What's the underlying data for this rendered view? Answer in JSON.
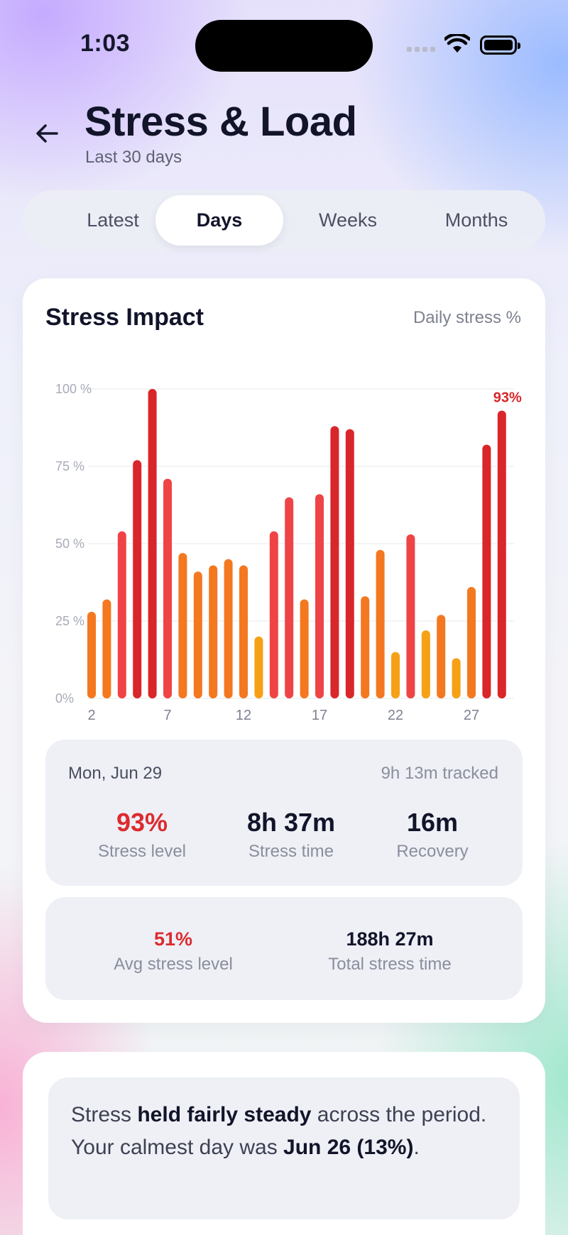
{
  "status_bar": {
    "time": "1:03"
  },
  "header": {
    "title": "Stress & Load",
    "subtitle": "Last 30 days"
  },
  "tabs": [
    {
      "label": "Latest",
      "active": false
    },
    {
      "label": "Days",
      "active": true
    },
    {
      "label": "Weeks",
      "active": false
    },
    {
      "label": "Months",
      "active": false
    }
  ],
  "card": {
    "title": "Stress Impact",
    "subtitle": "Daily stress %"
  },
  "chart_data": {
    "type": "bar",
    "ylim": [
      0,
      100
    ],
    "y_ticks": [
      "100  %",
      "75 %",
      "50 %",
      "25 %",
      "0%"
    ],
    "y_tick_values": [
      100,
      75,
      50,
      25,
      0
    ],
    "x_ticks": [
      "2",
      "7",
      "12",
      "17",
      "22",
      "27"
    ],
    "x_tick_values": [
      2,
      7,
      12,
      17,
      22,
      27
    ],
    "days": [
      2,
      3,
      4,
      5,
      6,
      7,
      8,
      9,
      10,
      11,
      12,
      13,
      14,
      15,
      16,
      17,
      18,
      19,
      20,
      21,
      22,
      23,
      24,
      25,
      26,
      27,
      28,
      29
    ],
    "values": [
      28,
      32,
      54,
      77,
      100,
      71,
      47,
      41,
      43,
      45,
      43,
      20,
      54,
      65,
      32,
      66,
      88,
      87,
      33,
      48,
      15,
      53,
      22,
      27,
      13,
      36,
      82,
      93
    ],
    "highlight_label": "93%",
    "grid": true,
    "colors": {
      "low": "#f5a015",
      "mid": "#f37820",
      "high": "#ef4446",
      "very_high": "#d9262b"
    }
  },
  "detail": {
    "date": "Mon, Jun 29",
    "tracked": "9h 13m tracked",
    "stress_level": {
      "value": "93%",
      "label": "Stress level"
    },
    "stress_time": {
      "value": "8h 37m",
      "label": "Stress time"
    },
    "recovery": {
      "value": "16m",
      "label": "Recovery"
    }
  },
  "summary_stats": {
    "avg": {
      "value": "51%",
      "label": "Avg stress level"
    },
    "total": {
      "value": "188h 27m",
      "label": "Total stress time"
    }
  },
  "insight": {
    "p1": "Stress ",
    "b1": "held fairly steady",
    "p2": " across the period. Your calmest day was ",
    "b2": "Jun 26 (13%)",
    "p3": "."
  }
}
